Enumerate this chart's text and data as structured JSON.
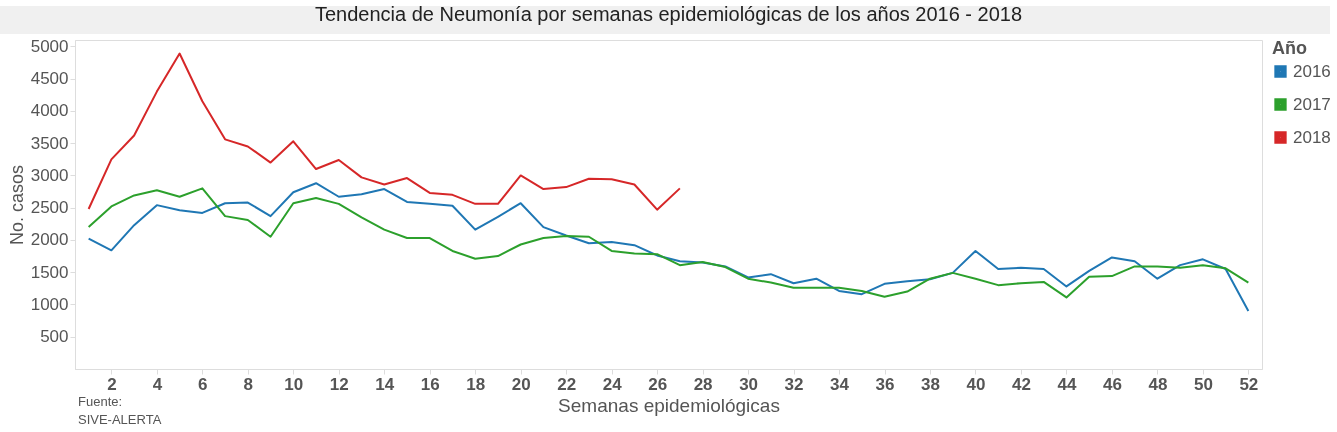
{
  "chart_data": {
    "type": "line",
    "title": "Tendencia de Neumonía por semanas epidemiológicas de los años 2016 - 2018",
    "xlabel": "Semanas epidemiológicas",
    "ylabel": "No. casos",
    "legend_title": "Año",
    "legend": "top right",
    "grid": false,
    "marker": "none",
    "line_style": "solid",
    "annotations": [
      "Fuente:\nSIVE-ALERTA"
    ],
    "x": [
      1,
      2,
      3,
      4,
      5,
      6,
      7,
      8,
      9,
      10,
      11,
      12,
      13,
      14,
      15,
      16,
      17,
      18,
      19,
      20,
      21,
      22,
      23,
      24,
      25,
      26,
      27,
      28,
      29,
      30,
      31,
      32,
      33,
      34,
      35,
      36,
      37,
      38,
      39,
      40,
      41,
      42,
      43,
      44,
      45,
      46,
      47,
      48,
      49,
      50,
      51,
      52
    ],
    "xlim": [
      0.4,
      52.6
    ],
    "xticks": [
      2,
      4,
      6,
      8,
      10,
      12,
      14,
      16,
      18,
      20,
      22,
      24,
      26,
      28,
      30,
      32,
      34,
      36,
      38,
      40,
      42,
      44,
      46,
      48,
      50,
      52
    ],
    "ylim": [
      0,
      5100
    ],
    "yticks": [
      500,
      1000,
      1500,
      2000,
      2500,
      3000,
      3500,
      4000,
      4500,
      5000
    ],
    "series": [
      {
        "name": "2016",
        "color": "#1f77b4",
        "values": [
          2020,
          1840,
          2230,
          2540,
          2460,
          2420,
          2570,
          2580,
          2370,
          2740,
          2880,
          2670,
          2710,
          2790,
          2590,
          2560,
          2530,
          2160,
          2360,
          2570,
          2200,
          2070,
          1950,
          1970,
          1920,
          1760,
          1670,
          1650,
          1590,
          1420,
          1470,
          1330,
          1400,
          1210,
          1160,
          1320,
          1360,
          1390,
          1490,
          1830,
          1550,
          1570,
          1550,
          1280,
          1520,
          1730,
          1670,
          1400,
          1610,
          1700,
          1550,
          900
        ]
      },
      {
        "name": "2017",
        "color": "#2ca02c",
        "values": [
          2200,
          2520,
          2690,
          2770,
          2670,
          2800,
          2370,
          2310,
          2050,
          2570,
          2650,
          2560,
          2350,
          2160,
          2030,
          2030,
          1830,
          1710,
          1750,
          1930,
          2030,
          2060,
          2050,
          1830,
          1790,
          1780,
          1610,
          1660,
          1580,
          1400,
          1340,
          1260,
          1260,
          1260,
          1210,
          1120,
          1200,
          1400,
          1490,
          1400,
          1300,
          1330,
          1350,
          1110,
          1430,
          1440,
          1590,
          1590,
          1570,
          1610,
          1560,
          1340
        ]
      },
      {
        "name": "2018",
        "color": "#d62728",
        "values": [
          2480,
          3250,
          3620,
          4300,
          4890,
          4150,
          3560,
          3450,
          3200,
          3530,
          3100,
          3240,
          2970,
          2860,
          2960,
          2730,
          2700,
          2560,
          2560,
          3000,
          2790,
          2820,
          2950,
          2940,
          2860,
          2470,
          2800,
          null,
          null,
          null,
          null,
          null,
          null,
          null,
          null,
          null,
          null,
          null,
          null,
          null,
          null,
          null,
          null,
          null,
          null,
          null,
          null,
          null,
          null,
          null,
          null,
          null
        ]
      }
    ]
  }
}
